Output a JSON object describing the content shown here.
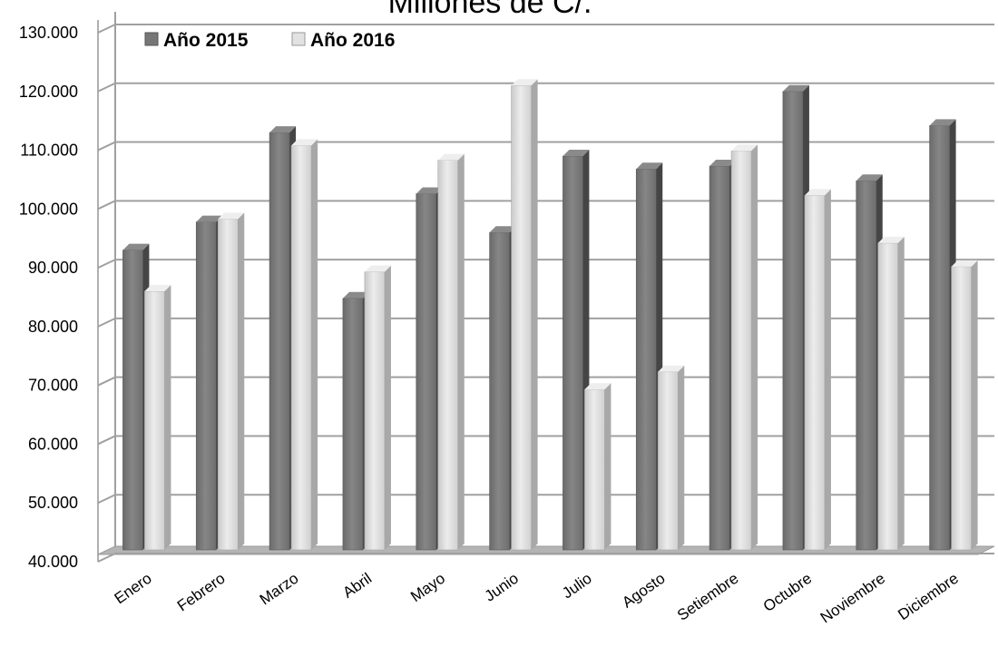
{
  "chart_data": {
    "type": "bar",
    "title": "Millones de C/.",
    "categories": [
      "Enero",
      "Febrero",
      "Marzo",
      "Abril",
      "Mayo",
      "Junio",
      "Julio",
      "Agosto",
      "Setiembre",
      "Octubre",
      "Noviembre",
      "Diciembre"
    ],
    "series": [
      {
        "name": "Año 2015",
        "color": "#777777",
        "values": [
          93000,
          97800,
          113000,
          84800,
          102600,
          96000,
          109000,
          106800,
          107300,
          120000,
          104800,
          114200
        ]
      },
      {
        "name": "Año 2016",
        "color": "#d6d6d6",
        "values": [
          86000,
          98300,
          110800,
          89300,
          108300,
          121000,
          69300,
          72300,
          109900,
          102300,
          94200,
          90200
        ]
      }
    ],
    "ylim": [
      40000,
      130000
    ],
    "yticks": [
      "40.000",
      "50.000",
      "60.000",
      "70.000",
      "80.000",
      "90.000",
      "100.000",
      "110.000",
      "120.000",
      "130.000"
    ],
    "grid": true,
    "legend_position": "top-left"
  }
}
